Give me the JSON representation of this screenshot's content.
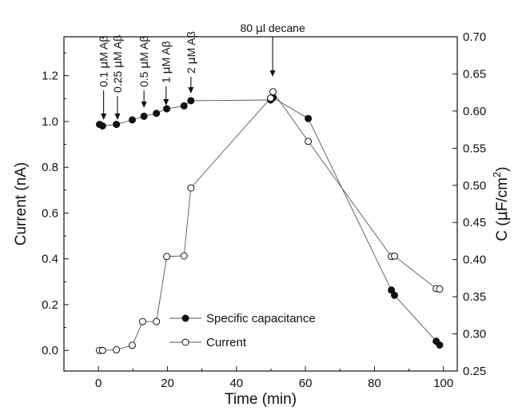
{
  "chart_data": {
    "type": "line",
    "xlabel": "Time (min)",
    "ylabel_left": "Current (nA)",
    "ylabel_right_main": "C (",
    "ylabel_right_mu": "μ",
    "ylabel_right_unit": "F/cm",
    "ylabel_right_sup": "2",
    "ylabel_right_close": ")",
    "xlim": [
      -10,
      104
    ],
    "ylim_left": [
      -0.09,
      1.37
    ],
    "ylim_right": [
      0.25,
      0.7
    ],
    "x_ticks": [
      0,
      20,
      40,
      60,
      80,
      100
    ],
    "y_left_ticks": [
      "0.0",
      "0.2",
      "0.4",
      "0.6",
      "0.8",
      "1.0",
      "1.2"
    ],
    "y_right_ticks": [
      "0.25",
      "0.30",
      "0.35",
      "0.40",
      "0.45",
      "0.50",
      "0.55",
      "0.60",
      "0.65",
      "0.70"
    ],
    "legend_position": "bottom-center",
    "series": [
      {
        "name": "Specific capacitance",
        "axis": "right",
        "marker": "filled-circle",
        "points": [
          {
            "x": 0.3,
            "y": 0.582
          },
          {
            "x": 1.2,
            "y": 0.58
          },
          {
            "x": 5.2,
            "y": 0.582
          },
          {
            "x": 9.8,
            "y": 0.588
          },
          {
            "x": 13.2,
            "y": 0.593
          },
          {
            "x": 16.8,
            "y": 0.597
          },
          {
            "x": 19.8,
            "y": 0.603
          },
          {
            "x": 24.8,
            "y": 0.607
          },
          {
            "x": 26.8,
            "y": 0.614
          },
          {
            "x": 49.9,
            "y": 0.615
          },
          {
            "x": 50.6,
            "y": 0.618
          },
          {
            "x": 60.8,
            "y": 0.59
          },
          {
            "x": 84.9,
            "y": 0.359
          },
          {
            "x": 85.8,
            "y": 0.352
          },
          {
            "x": 97.9,
            "y": 0.29
          },
          {
            "x": 98.9,
            "y": 0.285
          }
        ]
      },
      {
        "name": "Current",
        "axis": "left",
        "marker": "open-circle",
        "points": [
          {
            "x": 0.3,
            "y": 0.0
          },
          {
            "x": 1.2,
            "y": 0.0
          },
          {
            "x": 5.2,
            "y": 0.003
          },
          {
            "x": 9.8,
            "y": 0.022
          },
          {
            "x": 12.8,
            "y": 0.126
          },
          {
            "x": 16.8,
            "y": 0.126
          },
          {
            "x": 19.8,
            "y": 0.41
          },
          {
            "x": 24.8,
            "y": 0.413
          },
          {
            "x": 26.8,
            "y": 0.71
          },
          {
            "x": 49.9,
            "y": 1.102
          },
          {
            "x": 50.6,
            "y": 1.13
          },
          {
            "x": 60.8,
            "y": 0.913
          },
          {
            "x": 84.9,
            "y": 0.41
          },
          {
            "x": 85.8,
            "y": 0.412
          },
          {
            "x": 97.9,
            "y": 0.27
          },
          {
            "x": 98.9,
            "y": 0.268
          }
        ]
      }
    ],
    "annotations": [
      {
        "x": 1.5,
        "label_pre": "0.1 ",
        "label_mu": "μ",
        "label_post": "M Aβ"
      },
      {
        "x": 5.5,
        "label_pre": "0.25 ",
        "label_mu": "μ",
        "label_post": "M Aβ"
      },
      {
        "x": 13.2,
        "label_pre": "0.5 ",
        "label_mu": "μ",
        "label_post": "M Aβ"
      },
      {
        "x": 19.6,
        "label_pre": "1 ",
        "label_mu": "μ",
        "label_post": "M Aβ"
      },
      {
        "x": 26.8,
        "label_pre": "2 ",
        "label_mu": "μ",
        "label_post": "M Aβ"
      },
      {
        "x": 50.5,
        "label_pre": "80 ",
        "label_mu": "μ",
        "label_post": "l decane"
      }
    ]
  }
}
